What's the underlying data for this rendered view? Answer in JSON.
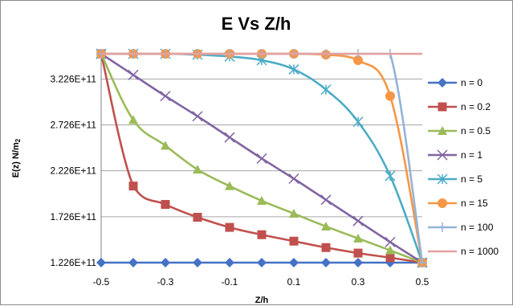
{
  "chart_data": {
    "type": "line",
    "title": "E Vs Z/h",
    "xlabel": "Z/h",
    "ylabel_main": "E(z) N/m",
    "ylabel_sub": "2",
    "x": [
      -0.5,
      -0.4,
      -0.3,
      -0.2,
      -0.1,
      0,
      0.1,
      0.2,
      0.3,
      0.4,
      0.5
    ],
    "x_tick_labels": [
      "-0.5",
      "-0.3",
      "-0.1",
      "0.1",
      "0.3",
      "0.5"
    ],
    "x_tick_values": [
      -0.5,
      -0.3,
      -0.1,
      0.1,
      0.3,
      0.5
    ],
    "xlim": [
      -0.5,
      0.5
    ],
    "y_tick_labels": [
      "1.226E+11",
      "1.726E+11",
      "2.226E+11",
      "2.726E+11",
      "3.226E+11"
    ],
    "y_tick_values": [
      122600000000.0,
      172600000000.0,
      222600000000.0,
      272600000000.0,
      322600000000.0
    ],
    "ylim": [
      122600000000.0,
      350000000000.0
    ],
    "grid": "horizontal",
    "legend_position": "right",
    "series": [
      {
        "name": "n = 0",
        "color": "#4472C4",
        "marker": "diamond",
        "values": [
          122600000000.0,
          122600000000.0,
          122600000000.0,
          122600000000.0,
          122600000000.0,
          122600000000.0,
          122600000000.0,
          122600000000.0,
          122600000000.0,
          122600000000.0,
          122600000000.0
        ]
      },
      {
        "name": "n = 0.2",
        "color": "#C0504D",
        "marker": "square",
        "values": [
          350000000000.0,
          206000000000.0,
          186000000000.0,
          172000000000.0,
          161000000000.0,
          153000000000.0,
          146000000000.0,
          139000000000.0,
          133000000000.0,
          128000000000.0,
          122600000000.0
        ]
      },
      {
        "name": "n = 0.5",
        "color": "#9BBB59",
        "marker": "triangle",
        "values": [
          350000000000.0,
          278000000000.0,
          250000000000.0,
          224000000000.0,
          206000000000.0,
          190000000000.0,
          176000000000.0,
          162000000000.0,
          149000000000.0,
          136000000000.0,
          122600000000.0
        ]
      },
      {
        "name": "n = 1",
        "color": "#8064A2",
        "marker": "x",
        "values": [
          350000000000.0,
          327000000000.0,
          304000000000.0,
          282000000000.0,
          259000000000.0,
          236000000000.0,
          214000000000.0,
          191000000000.0,
          168000000000.0,
          145000000000.0,
          122600000000.0
        ]
      },
      {
        "name": "n = 5",
        "color": "#4BACC6",
        "marker": "star",
        "values": [
          350000000000.0,
          350000000000.0,
          350000000000.0,
          349000000000.0,
          347000000000.0,
          343000000000.0,
          333000000000.0,
          311000000000.0,
          276000000000.0,
          217000000000.0,
          122600000000.0
        ]
      },
      {
        "name": "n = 15",
        "color": "#F79646",
        "marker": "circle",
        "values": [
          350000000000.0,
          350000000000.0,
          350000000000.0,
          350000000000.0,
          350000000000.0,
          350000000000.0,
          350000000000.0,
          349000000000.0,
          343000000000.0,
          304000000000.0,
          122600000000.0
        ]
      },
      {
        "name": "n = 100",
        "color": "#95B3D7",
        "marker": "plus",
        "values": [
          350000000000.0,
          350000000000.0,
          350000000000.0,
          350000000000.0,
          350000000000.0,
          350000000000.0,
          350000000000.0,
          350000000000.0,
          350000000000.0,
          350000000000.0,
          122600000000.0
        ]
      },
      {
        "name": "n = 1000",
        "color": "#E6A0A0",
        "marker": "dash",
        "values": [
          350000000000.0,
          350000000000.0,
          350000000000.0,
          350000000000.0,
          350000000000.0,
          350000000000.0,
          350000000000.0,
          350000000000.0,
          350000000000.0,
          350000000000.0,
          350000000000.0
        ]
      }
    ]
  }
}
